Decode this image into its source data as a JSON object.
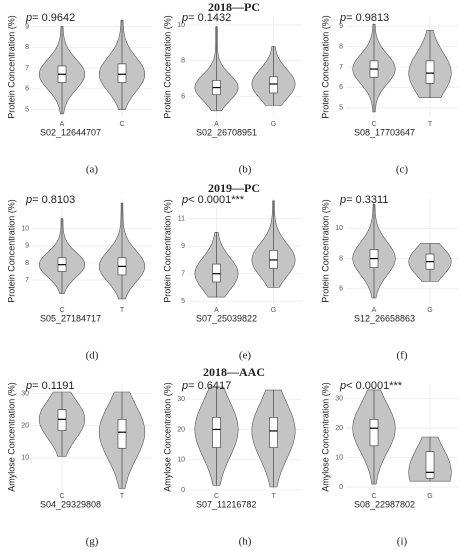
{
  "section_titles": [
    "2018—PC",
    "2019—PC",
    "2018—AAC"
  ],
  "chart_data": [
    {
      "type": "violin",
      "label": "(a)",
      "p_symbol": "p",
      "p_text": "= 0.9642",
      "ylabel": "Protein Concentration (%)",
      "xlabel": "S02_12644707",
      "ylim": [
        4.6,
        9.5
      ],
      "yticks": [
        5,
        6,
        7,
        8,
        9
      ],
      "groups": [
        {
          "category": "A",
          "min": 4.8,
          "q1": 6.3,
          "median": 6.7,
          "q3": 7.1,
          "max": 9.0
        },
        {
          "category": "C",
          "min": 5.0,
          "q1": 6.3,
          "median": 6.7,
          "q3": 7.2,
          "max": 9.3
        }
      ]
    },
    {
      "type": "violin",
      "label": "(b)",
      "p_symbol": "p",
      "p_text": "= 0.1432",
      "ylabel": "Protein Concentration (%)",
      "xlabel": "S02_26708951",
      "ylim": [
        4.8,
        10.5
      ],
      "yticks": [
        6,
        8,
        10
      ],
      "groups": [
        {
          "category": "A",
          "min": 5.2,
          "q1": 6.1,
          "median": 6.5,
          "q3": 6.9,
          "max": 9.9
        },
        {
          "category": "G",
          "min": 5.5,
          "q1": 6.2,
          "median": 6.7,
          "q3": 7.1,
          "max": 8.8
        }
      ]
    },
    {
      "type": "violin",
      "label": "(c)",
      "p_symbol": "p",
      "p_text": "= 0.9813",
      "ylabel": "Protein Concentration (%)",
      "xlabel": "S08_17703647",
      "ylim": [
        4.5,
        9.5
      ],
      "yticks": [
        5,
        6,
        7,
        8,
        9
      ],
      "groups": [
        {
          "category": "C",
          "min": 4.8,
          "q1": 6.5,
          "median": 6.9,
          "q3": 7.3,
          "max": 9.1
        },
        {
          "category": "T",
          "min": 5.5,
          "q1": 6.2,
          "median": 6.7,
          "q3": 7.3,
          "max": 8.8
        }
      ]
    },
    {
      "type": "violin",
      "label": "(d)",
      "p_symbol": "p",
      "p_text": "= 0.8103",
      "ylabel": "Protein Concentration (%)",
      "xlabel": "S05_27184717",
      "ylim": [
        5.6,
        11.8
      ],
      "yticks": [
        7,
        8,
        9,
        10
      ],
      "groups": [
        {
          "category": "C",
          "min": 6.2,
          "q1": 7.5,
          "median": 7.9,
          "q3": 8.3,
          "max": 10.6
        },
        {
          "category": "T",
          "min": 5.9,
          "q1": 7.3,
          "median": 7.8,
          "q3": 8.3,
          "max": 11.5
        }
      ]
    },
    {
      "type": "violin",
      "label": "(e)",
      "p_symbol": "p",
      "p_text": "< 0.0001***",
      "ylabel": "Protein Concentration (%)",
      "xlabel": "S07_25039822",
      "ylim": [
        4.8,
        12.5
      ],
      "yticks": [
        5,
        7,
        9,
        11
      ],
      "groups": [
        {
          "category": "A",
          "min": 5.3,
          "q1": 6.4,
          "median": 7.0,
          "q3": 7.7,
          "max": 10.0
        },
        {
          "category": "G",
          "min": 6.0,
          "q1": 7.4,
          "median": 8.0,
          "q3": 8.7,
          "max": 12.3
        }
      ]
    },
    {
      "type": "violin",
      "label": "(f)",
      "p_symbol": "p",
      "p_text": "= 0.3311",
      "ylabel": "Protein Concentration (%)",
      "xlabel": "S12_26658863",
      "ylim": [
        5,
        12
      ],
      "yticks": [
        6,
        8,
        10
      ],
      "groups": [
        {
          "category": "A",
          "min": 5.4,
          "q1": 7.4,
          "median": 8.0,
          "q3": 8.6,
          "max": 11.6
        },
        {
          "category": "G",
          "min": 6.5,
          "q1": 7.3,
          "median": 7.8,
          "q3": 8.3,
          "max": 9.0
        }
      ]
    },
    {
      "type": "violin",
      "label": "(g)",
      "p_symbol": "p",
      "p_text": "= 0.1191",
      "ylabel": "Amylose Concentration (%)",
      "xlabel": "S04_29329808",
      "ylim": [
        0,
        33
      ],
      "yticks": [
        10,
        20,
        30
      ],
      "groups": [
        {
          "category": "C",
          "min": 10.5,
          "q1": 18.5,
          "median": 22,
          "q3": 25,
          "max": 30.5
        },
        {
          "category": "T",
          "min": 0.5,
          "q1": 13,
          "median": 18,
          "q3": 22,
          "max": 30.5
        }
      ]
    },
    {
      "type": "violin",
      "label": "(h)",
      "p_symbol": "p",
      "p_text": "= 0.6417",
      "ylabel": "Amylose Concentration (%)",
      "xlabel": "S07_11216782",
      "ylim": [
        0,
        35
      ],
      "yticks": [
        0,
        10,
        20,
        30
      ],
      "groups": [
        {
          "category": "C",
          "min": 1.5,
          "q1": 14,
          "median": 20,
          "q3": 24,
          "max": 34
        },
        {
          "category": "T",
          "min": 1,
          "q1": 14,
          "median": 19.5,
          "q3": 24,
          "max": 33
        }
      ]
    },
    {
      "type": "violin",
      "label": "(i)",
      "p_symbol": "p",
      "p_text": "< 0.0001***",
      "ylabel": "Amylose Concentration (%)",
      "xlabel": "S08_22987802",
      "ylim": [
        -1,
        35
      ],
      "yticks": [
        0,
        10,
        20,
        30
      ],
      "groups": [
        {
          "category": "C",
          "min": 1,
          "q1": 14,
          "median": 20,
          "q3": 23,
          "max": 33
        },
        {
          "category": "G",
          "min": 2,
          "q1": 3,
          "median": 5,
          "q3": 12,
          "max": 17
        }
      ]
    }
  ]
}
